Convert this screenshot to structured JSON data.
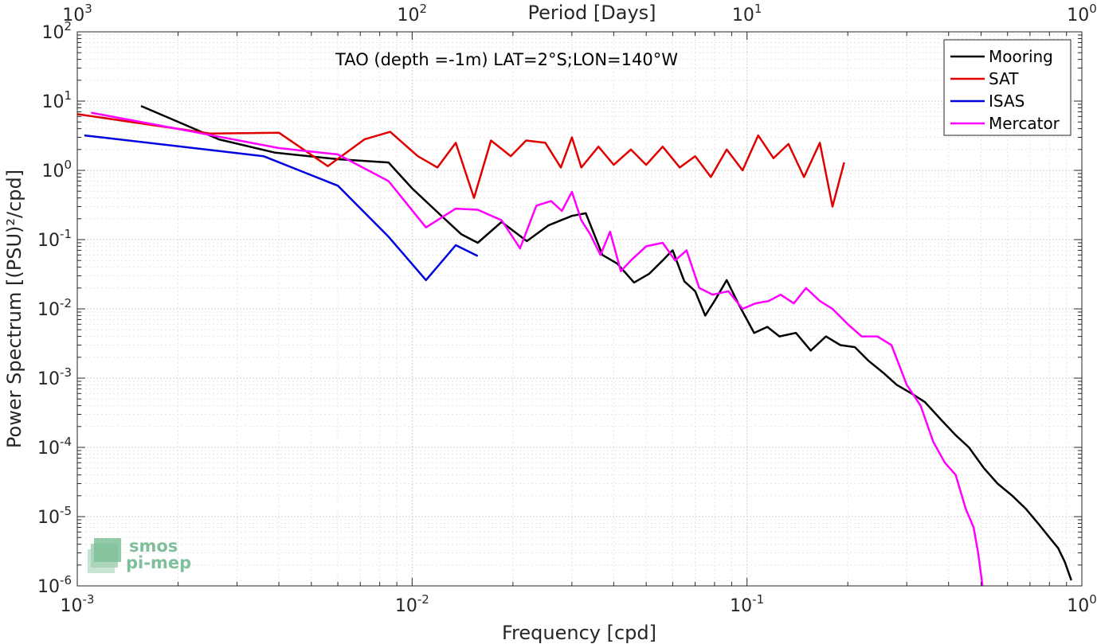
{
  "chart_data": {
    "type": "line",
    "title": "TAO (depth =-1m) LAT=2°S;LON=140°W",
    "xlabel": "Frequency [cpd]",
    "ylabel": "Power Spectrum [(PSU)²/cpd]",
    "x2label": "Period [Days]",
    "xscale": "log",
    "yscale": "log",
    "xlim": [
      0.001,
      1
    ],
    "ylim": [
      1e-06,
      100
    ],
    "x_ticks": [
      {
        "base": "10",
        "exp": "-3"
      },
      {
        "base": "10",
        "exp": "-2"
      },
      {
        "base": "10",
        "exp": "-1"
      },
      {
        "base": "10",
        "exp": "0"
      }
    ],
    "x2_ticks": [
      {
        "base": "10",
        "exp": "3"
      },
      {
        "base": "10",
        "exp": "2"
      },
      {
        "base": "10",
        "exp": "1"
      },
      {
        "base": "10",
        "exp": "0"
      }
    ],
    "y_ticks": [
      {
        "base": "10",
        "exp": "-6"
      },
      {
        "base": "10",
        "exp": "-5"
      },
      {
        "base": "10",
        "exp": "-4"
      },
      {
        "base": "10",
        "exp": "-3"
      },
      {
        "base": "10",
        "exp": "-2"
      },
      {
        "base": "10",
        "exp": "-1"
      },
      {
        "base": "10",
        "exp": "0"
      },
      {
        "base": "10",
        "exp": "1"
      },
      {
        "base": "10",
        "exp": "2"
      }
    ],
    "grid": true,
    "legend_position": "top-right",
    "series": [
      {
        "name": "Mooring",
        "color": "#000000",
        "x": [
          0.00155,
          0.00265,
          0.0039,
          0.006,
          0.0085,
          0.01,
          0.012,
          0.014,
          0.0157,
          0.0185,
          0.022,
          0.0255,
          0.03,
          0.033,
          0.037,
          0.041,
          0.046,
          0.051,
          0.056,
          0.059,
          0.06,
          0.065,
          0.07,
          0.075,
          0.08,
          0.087,
          0.095,
          0.105,
          0.115,
          0.125,
          0.14,
          0.155,
          0.172,
          0.19,
          0.21,
          0.23,
          0.255,
          0.28,
          0.31,
          0.34,
          0.38,
          0.42,
          0.46,
          0.51,
          0.56,
          0.62,
          0.68,
          0.74,
          0.8,
          0.85,
          0.89,
          0.93
        ],
        "y": [
          8.5,
          2.8,
          1.8,
          1.45,
          1.3,
          0.55,
          0.24,
          0.12,
          0.09,
          0.18,
          0.095,
          0.16,
          0.22,
          0.24,
          0.06,
          0.045,
          0.024,
          0.032,
          0.05,
          0.065,
          0.07,
          0.025,
          0.018,
          0.008,
          0.013,
          0.026,
          0.011,
          0.0045,
          0.0055,
          0.004,
          0.0045,
          0.0025,
          0.004,
          0.003,
          0.0028,
          0.0018,
          0.0012,
          0.0008,
          0.0006,
          0.00045,
          0.00025,
          0.00015,
          0.0001,
          5e-05,
          3e-05,
          2e-05,
          1.3e-05,
          8e-06,
          5e-06,
          3.5e-06,
          2.2e-06,
          1.2e-06
        ]
      },
      {
        "name": "SAT",
        "color": "#e00000",
        "x": [
          0.001,
          0.0025,
          0.004,
          0.0056,
          0.0072,
          0.0086,
          0.0104,
          0.0119,
          0.0135,
          0.0153,
          0.0172,
          0.0197,
          0.0219,
          0.025,
          0.0278,
          0.03,
          0.032,
          0.036,
          0.04,
          0.045,
          0.05,
          0.056,
          0.063,
          0.07,
          0.078,
          0.087,
          0.097,
          0.108,
          0.12,
          0.133,
          0.148,
          0.165,
          0.18,
          0.195
        ],
        "y": [
          6.5,
          3.4,
          3.5,
          1.15,
          2.8,
          3.6,
          1.6,
          1.1,
          2.5,
          0.4,
          2.7,
          1.6,
          2.7,
          2.5,
          1.1,
          3.0,
          1.1,
          2.2,
          1.2,
          2.0,
          1.2,
          2.2,
          1.1,
          1.6,
          0.8,
          2.0,
          1.0,
          3.2,
          1.5,
          2.4,
          0.8,
          2.5,
          0.3,
          1.3
        ]
      },
      {
        "name": "ISAS",
        "color": "#0000e0",
        "x": [
          0.00105,
          0.0036,
          0.006,
          0.0085,
          0.011,
          0.0135,
          0.0157
        ],
        "y": [
          3.2,
          1.6,
          0.6,
          0.11,
          0.026,
          0.083,
          0.058
        ]
      },
      {
        "name": "Mercator",
        "color": "#ff00ff",
        "x": [
          0.0011,
          0.0021,
          0.004,
          0.006,
          0.0085,
          0.011,
          0.0135,
          0.0157,
          0.0185,
          0.021,
          0.0235,
          0.026,
          0.028,
          0.03,
          0.032,
          0.034,
          0.0365,
          0.039,
          0.042,
          0.045,
          0.05,
          0.056,
          0.061,
          0.066,
          0.072,
          0.079,
          0.088,
          0.097,
          0.106,
          0.116,
          0.126,
          0.138,
          0.15,
          0.165,
          0.18,
          0.2,
          0.22,
          0.245,
          0.27,
          0.3,
          0.33,
          0.36,
          0.39,
          0.42,
          0.45,
          0.475,
          0.49,
          0.505
        ],
        "y": [
          6.8,
          3.8,
          2.1,
          1.7,
          0.7,
          0.15,
          0.28,
          0.27,
          0.19,
          0.075,
          0.31,
          0.36,
          0.26,
          0.49,
          0.19,
          0.12,
          0.06,
          0.13,
          0.035,
          0.05,
          0.08,
          0.09,
          0.05,
          0.07,
          0.02,
          0.016,
          0.018,
          0.01,
          0.012,
          0.013,
          0.016,
          0.012,
          0.02,
          0.013,
          0.01,
          0.006,
          0.004,
          0.004,
          0.003,
          0.0008,
          0.0004,
          0.00012,
          6e-05,
          4e-05,
          1.3e-05,
          7e-06,
          3e-06,
          1e-06
        ]
      }
    ]
  },
  "logo": {
    "line1": "smos",
    "line2": "pi-mep",
    "color": "#7fbf9a"
  }
}
